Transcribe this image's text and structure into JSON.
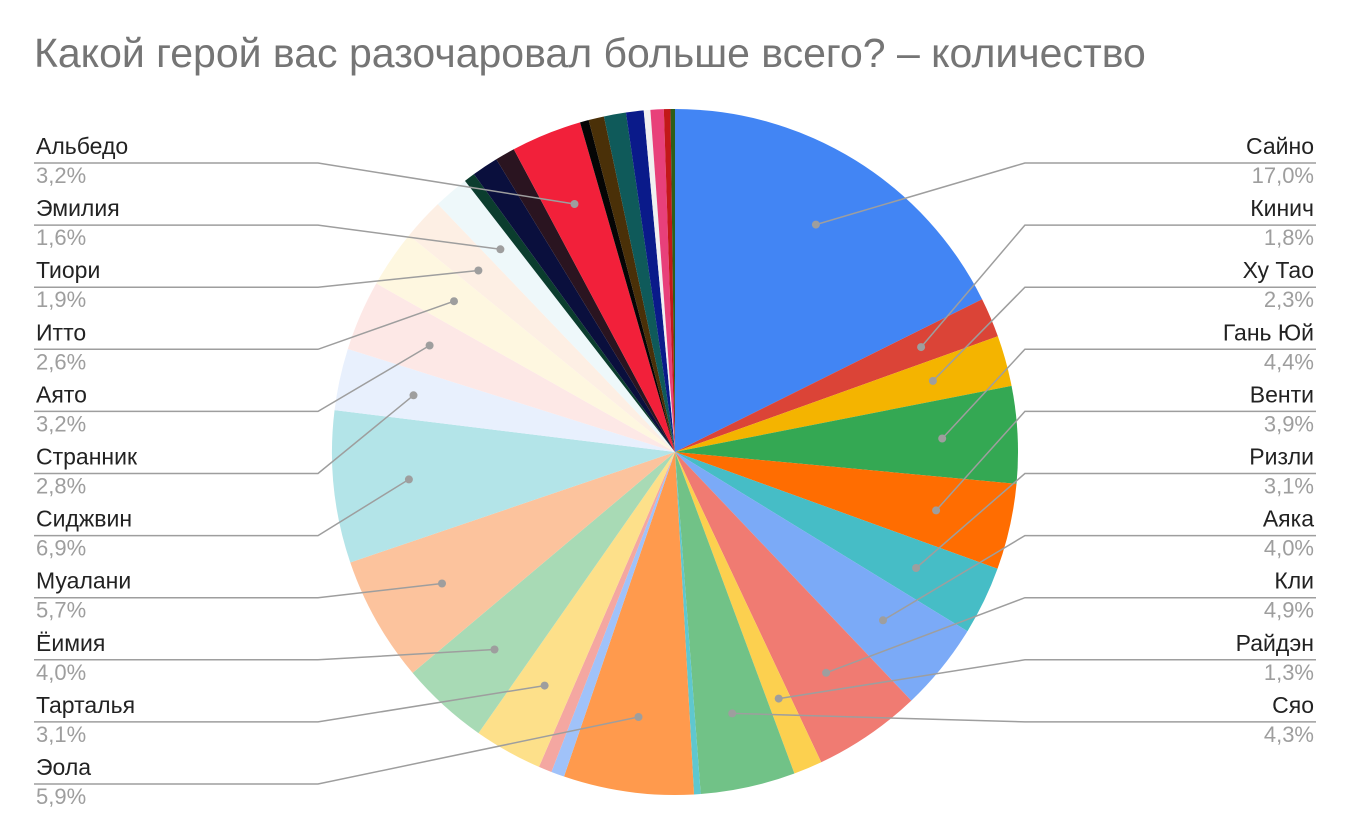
{
  "chart_data": {
    "type": "pie",
    "title": "Какой герой вас разочаровал больше всего? – количество",
    "start_angle_deg": 0,
    "direction": "clockwise",
    "slices": [
      {
        "label": "Сайно",
        "value": 17.0,
        "pct": "17,0%",
        "color": "#4285f4",
        "side": "right"
      },
      {
        "label": "Кинич",
        "value": 1.8,
        "pct": "1,8%",
        "color": "#db4437",
        "side": "right"
      },
      {
        "label": "Ху Тао",
        "value": 2.3,
        "pct": "2,3%",
        "color": "#f4b400",
        "side": "right"
      },
      {
        "label": "Гань Юй",
        "value": 4.4,
        "pct": "4,4%",
        "color": "#34a853",
        "side": "right"
      },
      {
        "label": "Венти",
        "value": 3.9,
        "pct": "3,9%",
        "color": "#ff6d01",
        "side": "right"
      },
      {
        "label": "Ризли",
        "value": 3.1,
        "pct": "3,1%",
        "color": "#46bdc6",
        "side": "right"
      },
      {
        "label": "Аяка",
        "value": 4.0,
        "pct": "4,0%",
        "color": "#7baaf7",
        "side": "right"
      },
      {
        "label": "Кли",
        "value": 4.9,
        "pct": "4,9%",
        "color": "#f07b72",
        "side": "right"
      },
      {
        "label": "Райдэн",
        "value": 1.3,
        "pct": "1,3%",
        "color": "#fcd04f",
        "side": "right"
      },
      {
        "label": "Сяо",
        "value": 4.3,
        "pct": "4,3%",
        "color": "#71c287",
        "side": "right"
      },
      {
        "label": "",
        "value": 0.3,
        "pct": "",
        "color": "#5fc7cf",
        "side": "none"
      },
      {
        "label": "Эола",
        "value": 5.9,
        "pct": "5,9%",
        "color": "#ff9a4d",
        "side": "left"
      },
      {
        "label": "",
        "value": 0.6,
        "pct": "",
        "color": "#a0c2f9",
        "side": "none"
      },
      {
        "label": "",
        "value": 0.6,
        "pct": "",
        "color": "#f4a7a1",
        "side": "none"
      },
      {
        "label": "Тарталья",
        "value": 3.1,
        "pct": "3,1%",
        "color": "#fde08a",
        "side": "left"
      },
      {
        "label": "Ёимия",
        "value": 4.0,
        "pct": "4,0%",
        "color": "#a8dab5",
        "side": "left"
      },
      {
        "label": "Муалани",
        "value": 5.7,
        "pct": "5,7%",
        "color": "#fcc39d",
        "side": "left"
      },
      {
        "label": "Сиджвин",
        "value": 6.9,
        "pct": "6,9%",
        "color": "#b3e4e8",
        "side": "left"
      },
      {
        "label": "Странник",
        "value": 2.8,
        "pct": "2,8%",
        "color": "#e8f0fd",
        "side": "left"
      },
      {
        "label": "Аято",
        "value": 3.2,
        "pct": "3,2%",
        "color": "#fde8e6",
        "side": "left"
      },
      {
        "label": "Итто",
        "value": 2.6,
        "pct": "2,6%",
        "color": "#fef7e0",
        "side": "left"
      },
      {
        "label": "Тиори",
        "value": 1.9,
        "pct": "1,9%",
        "color": "#fdefe4",
        "side": "left"
      },
      {
        "label": "Эмилия",
        "value": 1.6,
        "pct": "1,6%",
        "color": "#eef8fa",
        "side": "left"
      },
      {
        "label": "",
        "value": 0.5,
        "pct": "",
        "color": "#0b3d2e",
        "side": "none"
      },
      {
        "label": "",
        "value": 1.2,
        "pct": "",
        "color": "#0a0f3d",
        "side": "none"
      },
      {
        "label": "",
        "value": 0.9,
        "pct": "",
        "color": "#2a1420",
        "side": "none"
      },
      {
        "label": "Альбедо",
        "value": 3.2,
        "pct": "3,2%",
        "color": "#f2203a",
        "side": "left"
      },
      {
        "label": "",
        "value": 0.4,
        "pct": "",
        "color": "#050505",
        "side": "none"
      },
      {
        "label": "",
        "value": 0.7,
        "pct": "",
        "color": "#4a3008",
        "side": "none"
      },
      {
        "label": "",
        "value": 1.0,
        "pct": "",
        "color": "#0f5a5a",
        "side": "none"
      },
      {
        "label": "",
        "value": 0.8,
        "pct": "",
        "color": "#0a1a8a",
        "side": "none"
      },
      {
        "label": "",
        "value": 0.3,
        "pct": "",
        "color": "#f0f0f0",
        "side": "none"
      },
      {
        "label": "",
        "value": 0.6,
        "pct": "",
        "color": "#e8407a",
        "side": "none"
      },
      {
        "label": "",
        "value": 0.3,
        "pct": "",
        "color": "#c21818",
        "side": "none"
      },
      {
        "label": "",
        "value": 0.2,
        "pct": "",
        "color": "#2e5e1a",
        "side": "none"
      }
    ]
  }
}
